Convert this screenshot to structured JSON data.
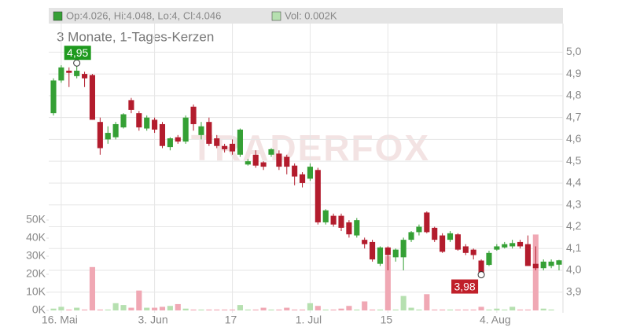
{
  "chart_data": {
    "type": "candlestick",
    "header": {
      "ohlc": "Op:4.026, Hi:4.048, Lo:4, Cl:4.046",
      "volume": "Vol: 0.002K"
    },
    "subtitle": "3 Monate, 1-Tages-Kerzen",
    "watermark": "TRADERFOX",
    "categories": [
      null,
      "16. Mai",
      null,
      null,
      null,
      null,
      null,
      null,
      null,
      null,
      null,
      null,
      null,
      "3. Jun",
      null,
      null,
      null,
      null,
      null,
      null,
      null,
      null,
      null,
      "17",
      null,
      null,
      null,
      null,
      null,
      null,
      null,
      null,
      null,
      "1. Jul",
      null,
      null,
      null,
      null,
      null,
      null,
      null,
      null,
      null,
      "15",
      null,
      null,
      null,
      null,
      null,
      null,
      null,
      null,
      null,
      null,
      null,
      null,
      null,
      "4. Aug",
      null,
      null,
      null,
      null,
      null,
      null,
      null,
      null
    ],
    "open": [
      4.72,
      4.87,
      4.915,
      4.89,
      4.9,
      4.895,
      4.68,
      4.6,
      4.61,
      4.655,
      4.78,
      4.72,
      4.65,
      4.69,
      4.67,
      4.565,
      4.61,
      4.59,
      4.75,
      4.62,
      4.68,
      4.605,
      4.57,
      4.58,
      4.53,
      4.485,
      4.53,
      4.495,
      4.53,
      4.535,
      4.52,
      4.48,
      4.44,
      4.42,
      4.46,
      4.22,
      4.25,
      4.25,
      4.22,
      4.16,
      4.14,
      4.13,
      4.03,
      4.105,
      4.06,
      4.06,
      4.14,
      4.175,
      4.265,
      4.195,
      4.16,
      4.14,
      4.165,
      4.11,
      4.095,
      4.045,
      4.025,
      4.095,
      4.105,
      4.11,
      4.13,
      4.12,
      4.03,
      4.01,
      4.02,
      4.026
    ],
    "high": [
      4.88,
      4.94,
      4.93,
      4.95,
      4.91,
      4.9,
      4.7,
      4.66,
      4.68,
      4.72,
      4.79,
      4.73,
      4.71,
      4.7,
      4.68,
      4.61,
      4.62,
      4.71,
      4.76,
      4.68,
      4.7,
      4.62,
      4.58,
      4.6,
      4.65,
      4.51,
      4.55,
      4.5,
      4.56,
      4.55,
      4.53,
      4.49,
      4.45,
      4.49,
      4.47,
      4.28,
      4.26,
      4.26,
      4.23,
      4.24,
      4.15,
      4.14,
      4.11,
      4.11,
      4.1,
      4.15,
      4.18,
      4.21,
      4.27,
      4.2,
      4.17,
      4.18,
      4.17,
      4.12,
      4.1,
      4.05,
      4.09,
      4.12,
      4.13,
      4.14,
      4.14,
      4.16,
      4.11,
      4.05,
      4.05,
      4.048
    ],
    "low": [
      4.71,
      4.86,
      4.84,
      4.88,
      4.84,
      4.69,
      4.53,
      4.58,
      4.6,
      4.65,
      4.72,
      4.64,
      4.64,
      4.63,
      4.56,
      4.55,
      4.58,
      4.58,
      4.64,
      4.6,
      4.57,
      4.56,
      4.54,
      4.53,
      4.52,
      4.48,
      4.47,
      4.46,
      4.52,
      4.46,
      4.44,
      4.39,
      4.38,
      4.41,
      4.21,
      4.21,
      4.2,
      4.18,
      4.15,
      4.15,
      4.1,
      4.04,
      4.02,
      4.0,
      4.04,
      4.0,
      4.13,
      4.16,
      4.17,
      4.13,
      4.08,
      4.13,
      4.09,
      4.07,
      4.05,
      3.98,
      4.02,
      4.09,
      4.1,
      4.1,
      4.1,
      4.02,
      4.0,
      4.0,
      4.01,
      4.0
    ],
    "close": [
      4.87,
      4.93,
      4.905,
      4.915,
      4.88,
      4.69,
      4.56,
      4.63,
      4.67,
      4.715,
      4.735,
      4.655,
      4.7,
      4.645,
      4.57,
      4.605,
      4.59,
      4.7,
      4.67,
      4.66,
      4.58,
      4.57,
      4.555,
      4.545,
      4.645,
      4.5,
      4.48,
      4.475,
      4.555,
      4.475,
      4.475,
      4.43,
      4.4,
      4.475,
      4.22,
      4.275,
      4.21,
      4.195,
      4.165,
      4.23,
      4.12,
      4.05,
      4.105,
      4.07,
      4.095,
      4.14,
      4.175,
      4.2,
      4.175,
      4.14,
      4.085,
      4.17,
      4.095,
      4.08,
      4.07,
      3.99,
      4.08,
      4.11,
      4.12,
      4.125,
      4.11,
      4.02,
      4.01,
      4.04,
      4.04,
      4.046
    ],
    "volume": [
      1000,
      2000,
      500,
      1500,
      500,
      24000,
      500,
      500,
      4000,
      3000,
      1500,
      11000,
      1500,
      1500,
      2000,
      2500,
      3500,
      1000,
      500,
      500,
      500,
      500,
      500,
      500,
      3000,
      500,
      500,
      1500,
      500,
      500,
      1500,
      500,
      500,
      4000,
      2500,
      500,
      500,
      1000,
      2500,
      500,
      5000,
      500,
      500,
      30000,
      500,
      8000,
      1500,
      500,
      9000,
      500,
      500,
      500,
      500,
      500,
      500,
      2000,
      500,
      1000,
      500,
      2000,
      500,
      500,
      42000,
      1000,
      500,
      2
    ],
    "up_color": "#35a035",
    "down_color": "#b31c2d",
    "volume_up_color": "#b6e0b0",
    "volume_down_color": "#f0a8b4",
    "ylim": [
      3.82,
      5.12
    ],
    "yticks": [
      {
        "value": 3.9,
        "label": "3,9"
      },
      {
        "value": 4.0,
        "label": "4,0"
      },
      {
        "value": 4.1,
        "label": "4,1"
      },
      {
        "value": 4.2,
        "label": "4,2"
      },
      {
        "value": 4.3,
        "label": "4,3"
      },
      {
        "value": 4.4,
        "label": "4,4"
      },
      {
        "value": 4.5,
        "label": "4,5"
      },
      {
        "value": 4.6,
        "label": "4,6"
      },
      {
        "value": 4.7,
        "label": "4,7"
      },
      {
        "value": 4.8,
        "label": "4,8"
      },
      {
        "value": 4.9,
        "label": "4,9"
      },
      {
        "value": 5.0,
        "label": "5,0"
      }
    ],
    "y2lim": [
      0,
      60000
    ],
    "y2ticks": [
      {
        "value": 0,
        "label": "0K"
      },
      {
        "value": 10000,
        "label": "10K"
      },
      {
        "value": 20000,
        "label": "20K"
      },
      {
        "value": 30000,
        "label": "30K"
      },
      {
        "value": 40000,
        "label": "40K"
      },
      {
        "value": 50000,
        "label": "50K"
      }
    ],
    "annotations": [
      {
        "text": "4,95",
        "value": 4.95,
        "kind": "high",
        "color": "#1f9a1f"
      },
      {
        "text": "3,98",
        "value": 3.98,
        "kind": "low",
        "color": "#c0202a"
      }
    ],
    "grid": true
  }
}
